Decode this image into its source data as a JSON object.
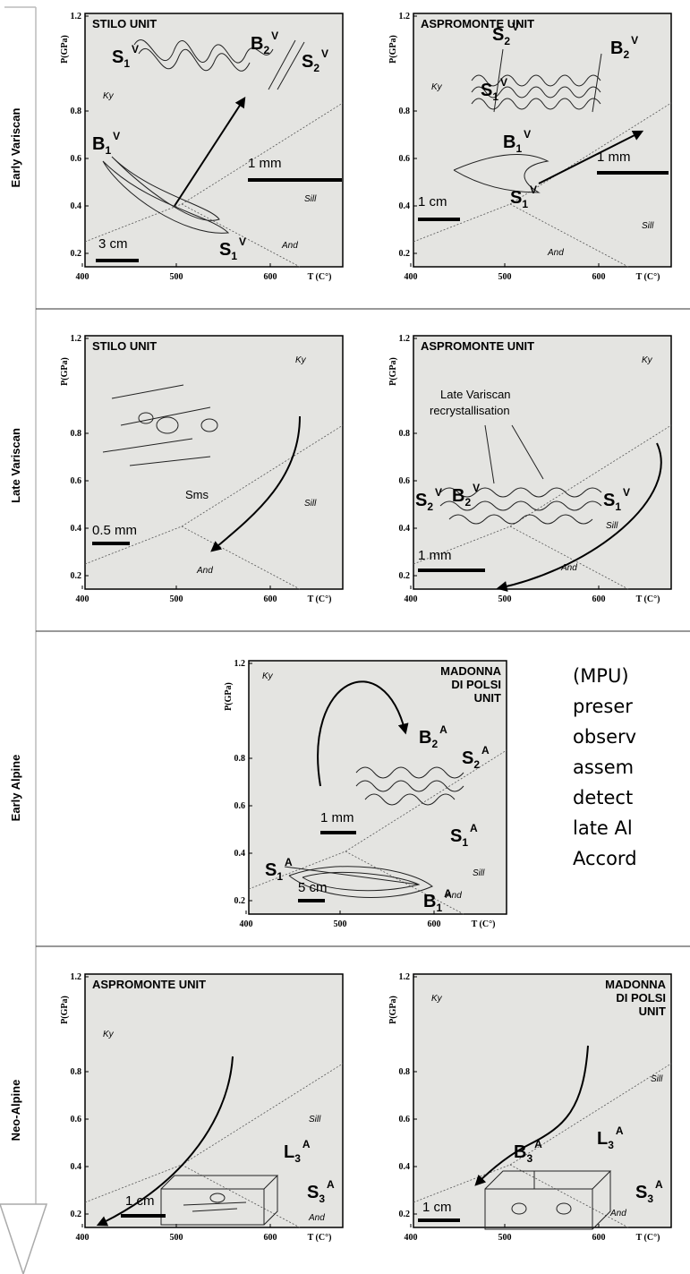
{
  "sidebar": {
    "stages": [
      "Early Variscan",
      "Late Variscan",
      "Early Alpine",
      "Neo-Alpine"
    ]
  },
  "panels": [
    {
      "title": [
        "STILO UNIT"
      ],
      "y_axis": "P(GPa)",
      "x_axis": "T (C°)",
      "yticks": [
        0.2,
        0.4,
        0.6,
        0.8,
        1.2
      ],
      "xticks": [
        400,
        500,
        600
      ],
      "fields": [
        "Ky",
        "Sill",
        "And"
      ],
      "scale_bars": [
        "3 cm",
        "1 mm"
      ],
      "notes": [],
      "structures": [
        {
          "text": "S",
          "sub": "1",
          "sup": "V"
        },
        {
          "text": "B",
          "sub": "2",
          "sup": "V"
        },
        {
          "text": "S",
          "sub": "2",
          "sup": "V"
        },
        {
          "text": "B",
          "sub": "1",
          "sup": "V"
        },
        {
          "text": "S",
          "sub": "1",
          "sup": "V"
        }
      ]
    },
    {
      "title": [
        "ASPROMONTE UNIT"
      ],
      "y_axis": "P(GPa)",
      "x_axis": "T (C°)",
      "yticks": [
        0.2,
        0.4,
        0.6,
        0.8,
        1.2
      ],
      "xticks": [
        400,
        500,
        600
      ],
      "fields": [
        "Ky",
        "Sill",
        "And"
      ],
      "scale_bars": [
        "1 cm",
        "1 mm"
      ],
      "notes": [],
      "structures": [
        {
          "text": "S",
          "sub": "2",
          "sup": "V"
        },
        {
          "text": "B",
          "sub": "2",
          "sup": "V"
        },
        {
          "text": "S",
          "sub": "1",
          "sup": "V"
        },
        {
          "text": "B",
          "sub": "1",
          "sup": "V"
        },
        {
          "text": "S",
          "sub": "1",
          "sup": "V"
        }
      ]
    },
    {
      "title": [
        "STILO UNIT"
      ],
      "y_axis": "P(GPa)",
      "x_axis": "T (C°)",
      "yticks": [
        0.2,
        0.4,
        0.6,
        0.8,
        1.2
      ],
      "xticks": [
        400,
        500,
        600
      ],
      "fields": [
        "Ky",
        "Sill",
        "And"
      ],
      "scale_bars": [
        "0.5 mm"
      ],
      "notes": [
        "Sms"
      ],
      "structures": []
    },
    {
      "title": [
        "ASPROMONTE UNIT"
      ],
      "y_axis": "P(GPa)",
      "x_axis": "T (C°)",
      "yticks": [
        0.2,
        0.4,
        0.6,
        0.8,
        1.2
      ],
      "xticks": [
        400,
        500,
        600
      ],
      "fields": [
        "Ky",
        "Sill",
        "And"
      ],
      "scale_bars": [
        "1 mm"
      ],
      "notes": [
        "Late Variscan",
        "recrystallisation"
      ],
      "structures": [
        {
          "text": "S",
          "sub": "2",
          "sup": "V"
        },
        {
          "text": "B",
          "sub": "2",
          "sup": "V"
        },
        {
          "text": "S",
          "sub": "1",
          "sup": "V"
        }
      ]
    },
    {
      "title": [
        "MADONNA",
        "DI POLSI",
        "UNIT"
      ],
      "y_axis": "P(GPa)",
      "x_axis": "T (C°)",
      "yticks": [
        0.2,
        0.4,
        0.6,
        0.8,
        1.2
      ],
      "xticks": [
        400,
        500,
        600
      ],
      "fields": [
        "Ky",
        "Sill",
        "And"
      ],
      "scale_bars": [
        "1 mm",
        "5 cm"
      ],
      "notes": [],
      "structures": [
        {
          "text": "B",
          "sub": "2",
          "sup": "A"
        },
        {
          "text": "S",
          "sub": "2",
          "sup": "A"
        },
        {
          "text": "S",
          "sub": "1",
          "sup": "A"
        },
        {
          "text": "S",
          "sub": "1",
          "sup": "A"
        },
        {
          "text": "B",
          "sub": "1",
          "sup": "A"
        }
      ]
    },
    {
      "title": [
        "ASPROMONTE UNIT"
      ],
      "y_axis": "P(GPa)",
      "x_axis": "T (C°)",
      "yticks": [
        0.2,
        0.4,
        0.6,
        0.8,
        1.2
      ],
      "xticks": [
        400,
        500,
        600
      ],
      "fields": [
        "Ky",
        "Sill",
        "And"
      ],
      "scale_bars": [
        "1 cm"
      ],
      "notes": [],
      "structures": [
        {
          "text": "L",
          "sub": "3",
          "sup": "A"
        },
        {
          "text": "S",
          "sub": "3",
          "sup": "A"
        }
      ]
    },
    {
      "title": [
        "MADONNA",
        "DI POLSI",
        "UNIT"
      ],
      "y_axis": "P(GPa)",
      "x_axis": "T (C°)",
      "yticks": [
        0.2,
        0.4,
        0.6,
        0.8,
        1.2
      ],
      "xticks": [
        400,
        500,
        600
      ],
      "fields": [
        "Ky",
        "Sill",
        "And"
      ],
      "scale_bars": [
        "1 cm"
      ],
      "notes": [],
      "structures": [
        {
          "text": "B",
          "sub": "3",
          "sup": "A"
        },
        {
          "text": "L",
          "sub": "3",
          "sup": "A"
        },
        {
          "text": "S",
          "sub": "3",
          "sup": "A"
        }
      ]
    }
  ],
  "text_fragment": [
    "(MPU)",
    "preser",
    "observ",
    "assem",
    "detect",
    "late Al",
    "Accord"
  ]
}
